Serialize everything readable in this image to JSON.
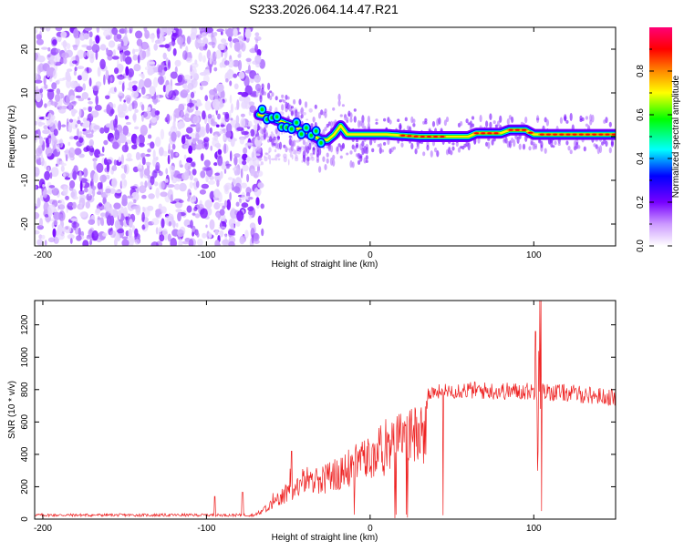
{
  "title": "S233.2026.064.14.47.R21",
  "chart_data": [
    {
      "type": "heatmap",
      "xlabel": "Height of straight line (km)",
      "ylabel": "Frequency (Hz)",
      "xlim": [
        -205,
        150
      ],
      "ylim": [
        -25,
        25
      ],
      "xticks": [
        -200,
        -100,
        0,
        100
      ],
      "yticks": [
        -20,
        -10,
        0,
        10,
        20
      ],
      "noise_region_x": [
        -205,
        -68
      ],
      "ridge": [
        {
          "x": -68,
          "f": 5
        },
        {
          "x": -62,
          "f": 4.5
        },
        {
          "x": -55,
          "f": 3.5
        },
        {
          "x": -48,
          "f": 2.5
        },
        {
          "x": -42,
          "f": 1.5
        },
        {
          "x": -36,
          "f": 0.5
        },
        {
          "x": -30,
          "f": -0.8
        },
        {
          "x": -26,
          "f": -0.8
        },
        {
          "x": -22,
          "f": 0.5
        },
        {
          "x": -18,
          "f": 2.5
        },
        {
          "x": -14,
          "f": 0.5
        },
        {
          "x": -5,
          "f": 0.5
        },
        {
          "x": 10,
          "f": 0.5
        },
        {
          "x": 30,
          "f": 0
        },
        {
          "x": 60,
          "f": 0
        },
        {
          "x": 65,
          "f": 0.8
        },
        {
          "x": 80,
          "f": 0.8
        },
        {
          "x": 85,
          "f": 1.5
        },
        {
          "x": 95,
          "f": 1.5
        },
        {
          "x": 100,
          "f": 0.5
        },
        {
          "x": 120,
          "f": 0.5
        },
        {
          "x": 150,
          "f": 0.5
        }
      ],
      "colorbar": {
        "label": "Normalized spectral amplitude",
        "range": [
          0,
          1
        ],
        "ticks": [
          "0.0",
          "0.2",
          "0.4",
          "0.6",
          "0.8"
        ],
        "colors": [
          "#ffffff",
          "#cc99ff",
          "#7700ff",
          "#0000ff",
          "#00ffff",
          "#00ff00",
          "#ffff00",
          "#ff8800",
          "#ff0000",
          "#ff0077"
        ]
      }
    },
    {
      "type": "line",
      "xlabel": "Height of straight line (km)",
      "ylabel": "SNR (10 * v/v)",
      "xlim": [
        -205,
        150
      ],
      "ylim": [
        0,
        1350
      ],
      "xticks": [
        -200,
        -100,
        0,
        100
      ],
      "yticks": [
        0,
        200,
        400,
        600,
        800,
        1000,
        1200
      ],
      "color": "#ee2222",
      "envelope": [
        {
          "x": -205,
          "y": 25
        },
        {
          "x": -70,
          "y": 25
        },
        {
          "x": -60,
          "y": 130
        },
        {
          "x": -50,
          "y": 230
        },
        {
          "x": -30,
          "y": 330
        },
        {
          "x": -10,
          "y": 450
        },
        {
          "x": 10,
          "y": 600
        },
        {
          "x": 25,
          "y": 700
        },
        {
          "x": 35,
          "y": 780
        },
        {
          "x": 50,
          "y": 800
        },
        {
          "x": 80,
          "y": 790
        },
        {
          "x": 95,
          "y": 790
        },
        {
          "x": 100,
          "y": 790
        },
        {
          "x": 120,
          "y": 780
        },
        {
          "x": 150,
          "y": 750
        }
      ],
      "spikes": [
        {
          "x": -95,
          "y": 140
        },
        {
          "x": -78,
          "y": 165
        },
        {
          "x": -48,
          "y": 420
        },
        {
          "x": 101,
          "y": 1160
        },
        {
          "x": 104,
          "y": 1350
        },
        {
          "x": 105,
          "y": 50
        }
      ]
    }
  ]
}
